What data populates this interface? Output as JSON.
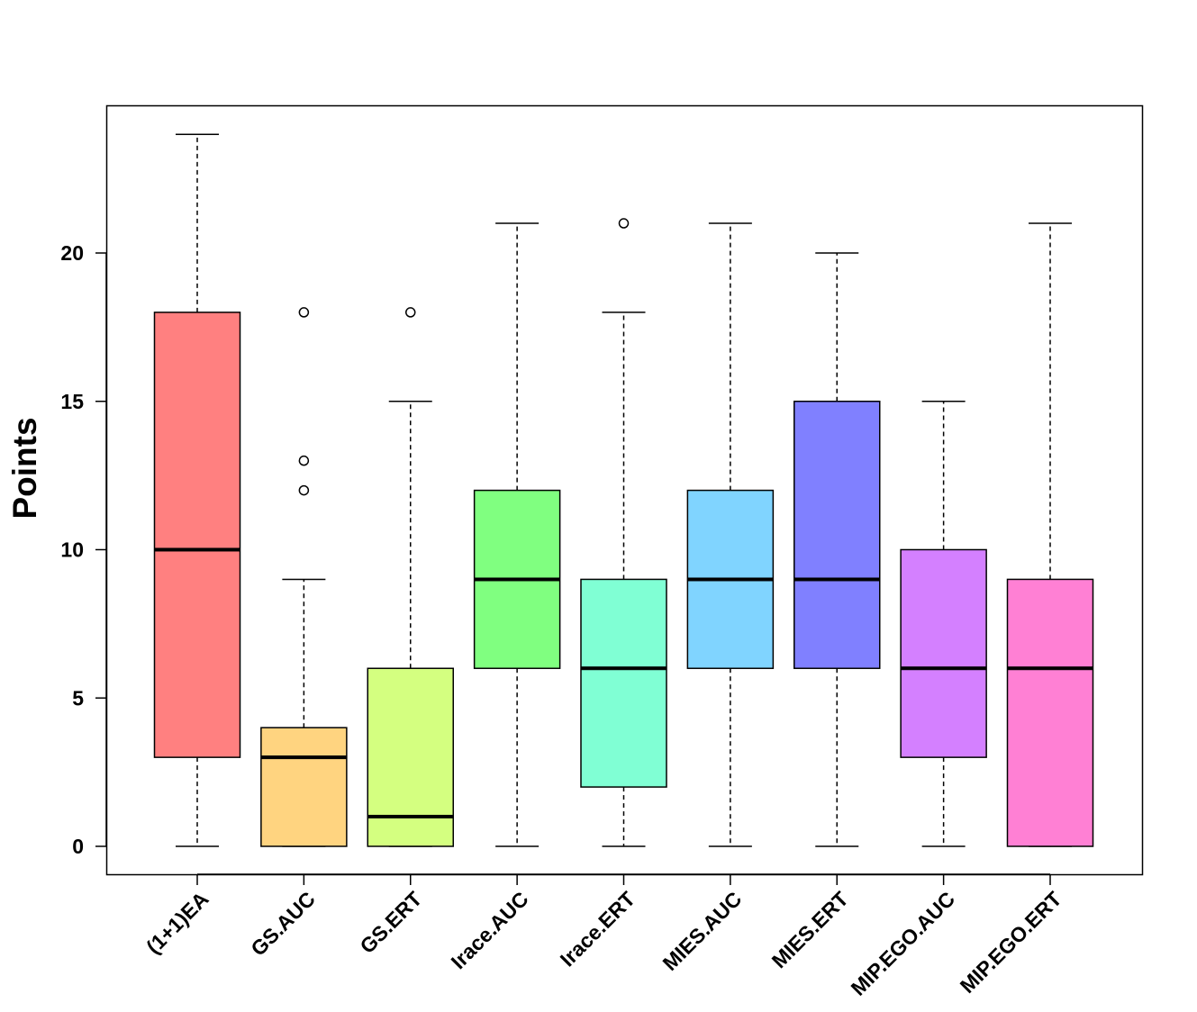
{
  "chart_data": {
    "type": "boxplot",
    "title": "",
    "xlabel": "",
    "ylabel": "Points",
    "ylim": [
      -1,
      24.9
    ],
    "yticks": [
      0,
      5,
      10,
      15,
      20
    ],
    "grid": false,
    "categories": [
      "(1+1)EA",
      "GS.AUC",
      "GS.ERT",
      "Irace.AUC",
      "Irace.ERT",
      "MIES.AUC",
      "MIES.ERT",
      "MIP.EGO.AUC",
      "MIP.EGO.ERT"
    ],
    "boxes": [
      {
        "label": "(1+1)EA",
        "whisker_low": 0,
        "q1": 3,
        "median": 10,
        "q3": 18,
        "whisker_high": 24,
        "outliers": [],
        "color": "#FF8080"
      },
      {
        "label": "GS.AUC",
        "whisker_low": 0,
        "q1": 0,
        "median": 3,
        "q3": 4,
        "whisker_high": 9,
        "outliers": [
          12,
          13,
          18
        ],
        "color": "#FFD480"
      },
      {
        "label": "GS.ERT",
        "whisker_low": 0,
        "q1": 0,
        "median": 1,
        "q3": 6,
        "whisker_high": 15,
        "outliers": [
          18
        ],
        "color": "#D4FF80"
      },
      {
        "label": "Irace.AUC",
        "whisker_low": 0,
        "q1": 6,
        "median": 9,
        "q3": 12,
        "whisker_high": 21,
        "outliers": [],
        "color": "#80FF80"
      },
      {
        "label": "Irace.ERT",
        "whisker_low": 0,
        "q1": 2,
        "median": 6,
        "q3": 9,
        "whisker_high": 18,
        "outliers": [
          21
        ],
        "color": "#80FFD4"
      },
      {
        "label": "MIES.AUC",
        "whisker_low": 0,
        "q1": 6,
        "median": 9,
        "q3": 12,
        "whisker_high": 21,
        "outliers": [],
        "color": "#80D4FF"
      },
      {
        "label": "MIES.ERT",
        "whisker_low": 0,
        "q1": 6,
        "median": 9,
        "q3": 15,
        "whisker_high": 20,
        "outliers": [],
        "color": "#8080FF"
      },
      {
        "label": "MIP.EGO.AUC",
        "whisker_low": 0,
        "q1": 3,
        "median": 6,
        "q3": 10,
        "whisker_high": 15,
        "outliers": [],
        "color": "#D480FF"
      },
      {
        "label": "MIP.EGO.ERT",
        "whisker_low": 0,
        "q1": 0,
        "median": 6,
        "q3": 9,
        "whisker_high": 21,
        "outliers": [],
        "color": "#FF80D4"
      }
    ]
  }
}
